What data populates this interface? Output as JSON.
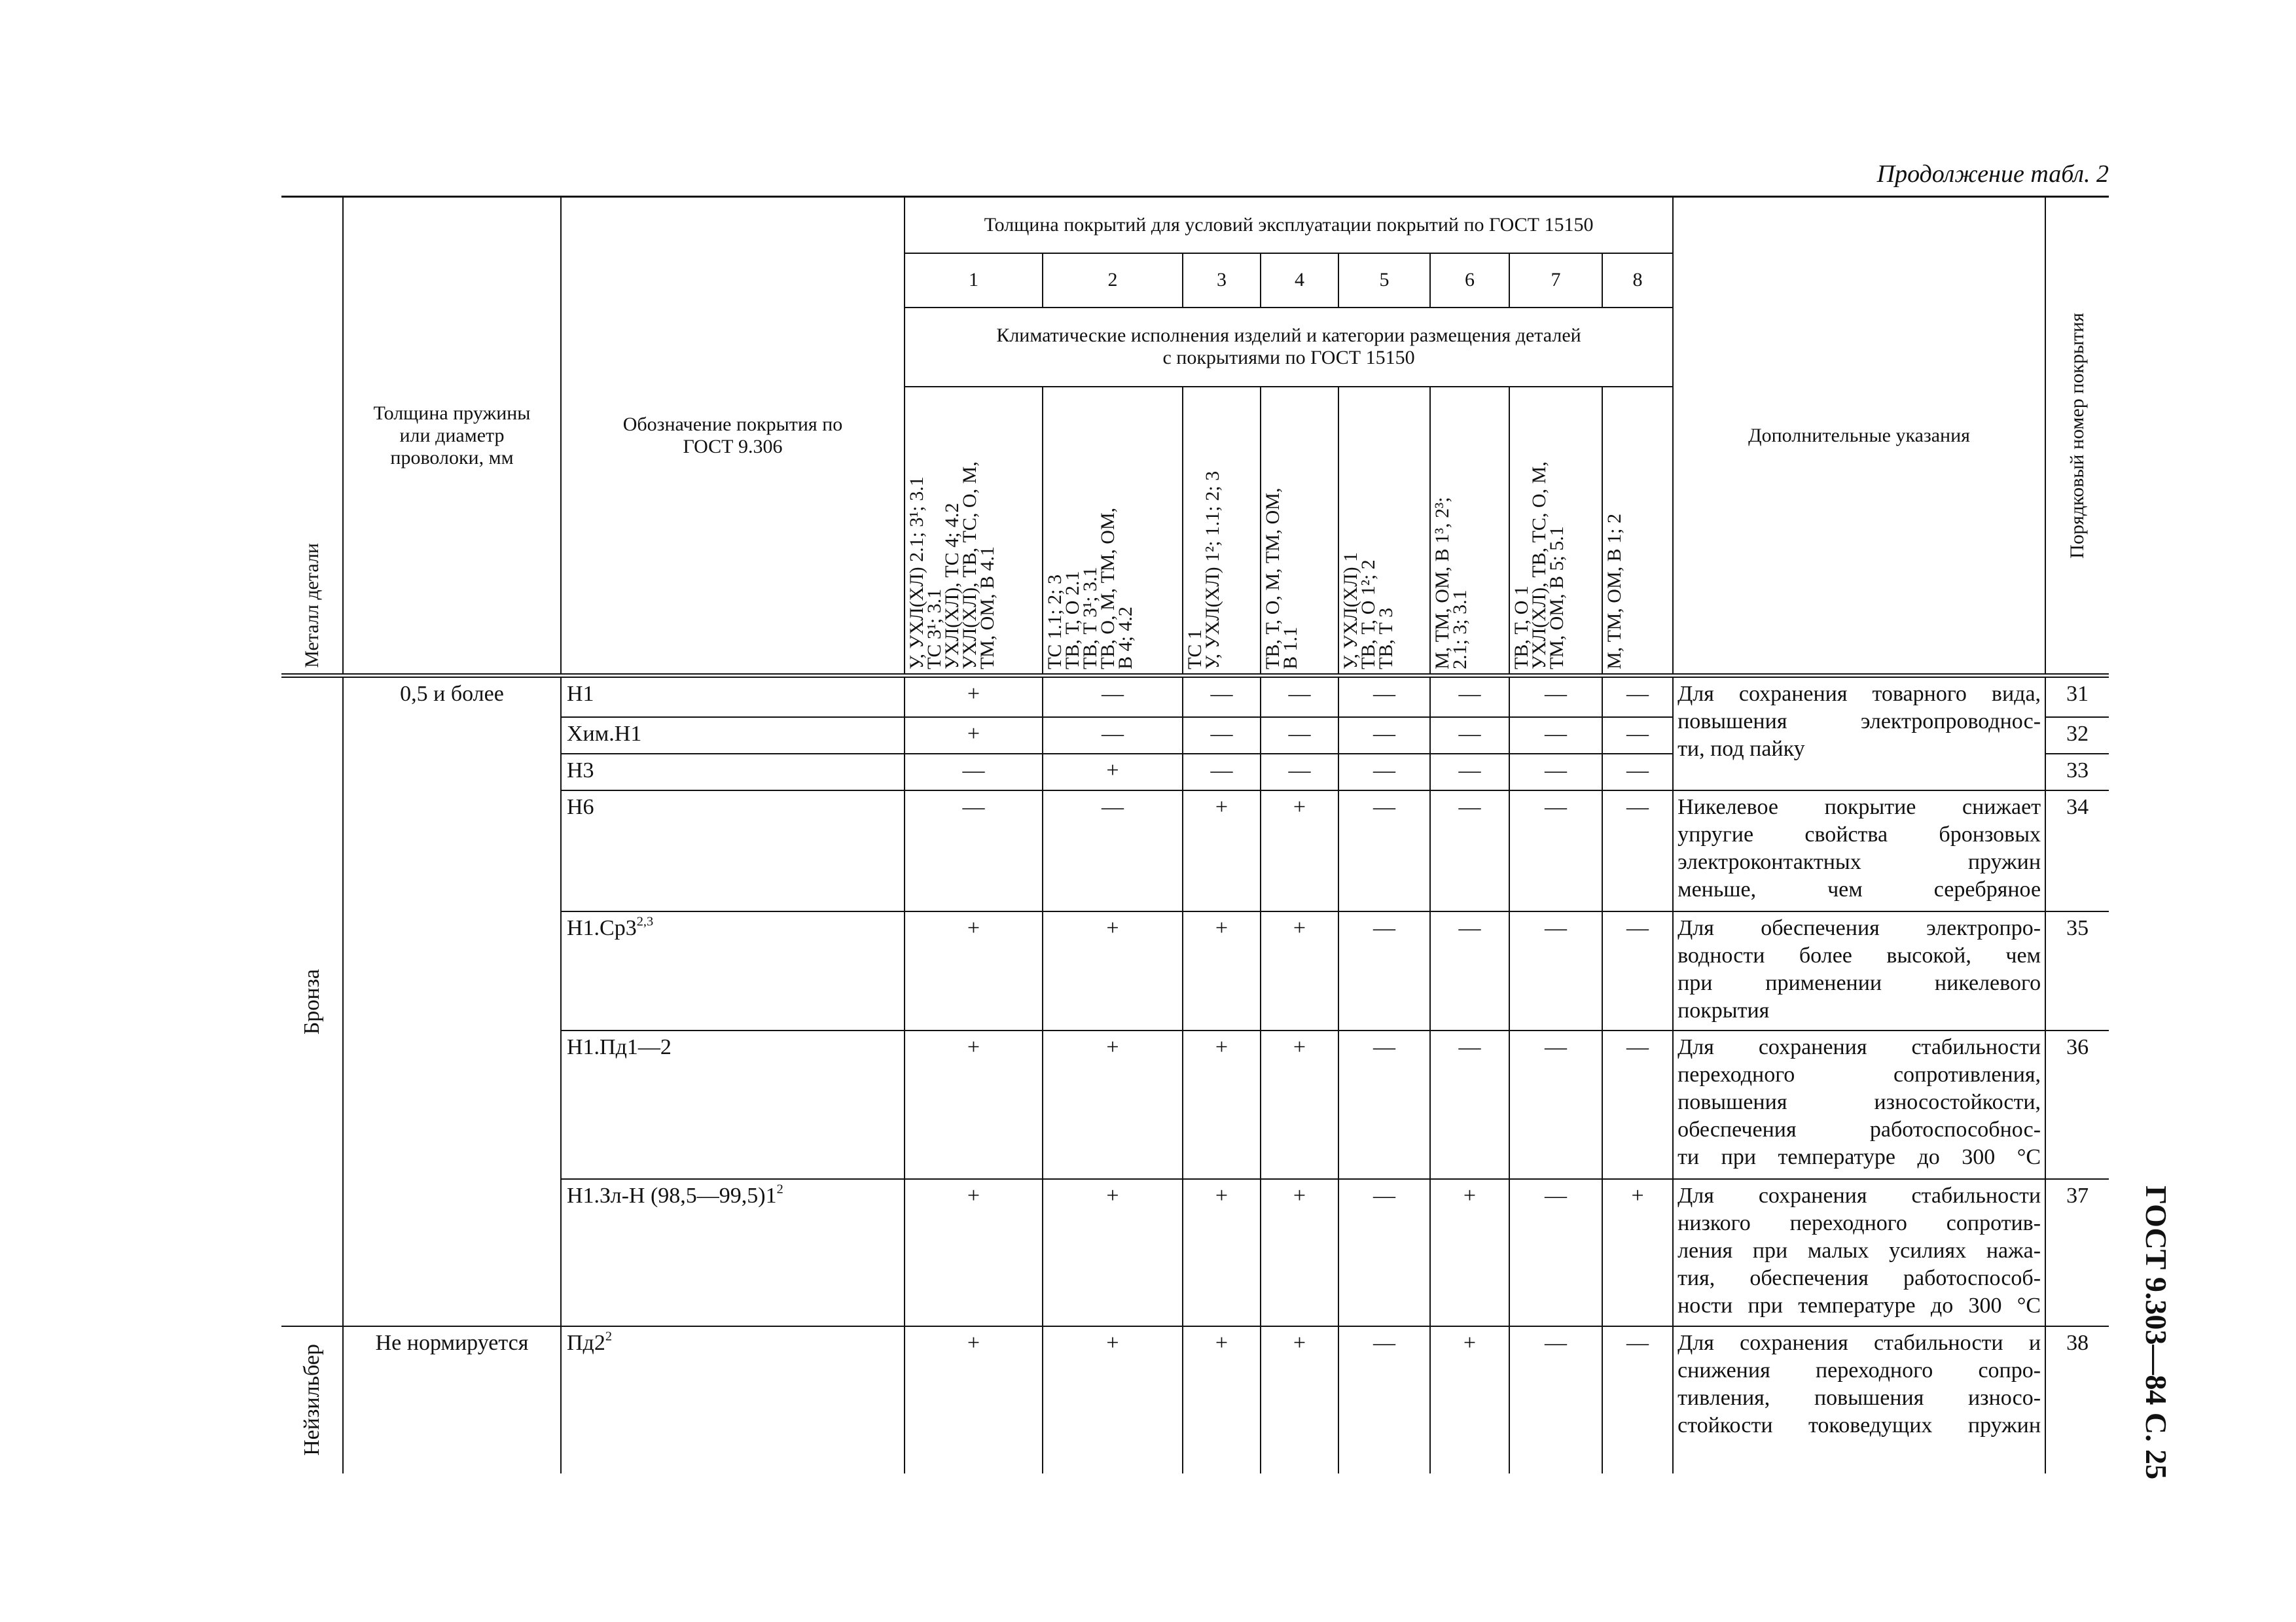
{
  "header": {
    "continuation": "Продолжение табл. 2",
    "side": "ГОСТ 9.303—84 С. 25"
  },
  "table": {
    "columns": {
      "metal": "Металл детали",
      "thickness": [
        "Толщина пружины",
        "или диаметр",
        "проволоки, мм"
      ],
      "designation": [
        "Обозначение покрытия по",
        "ГОСТ 9.306"
      ],
      "coverage_group": "Толщина покрытий для условий эксплуатации покрытий по ГОСТ  15150",
      "conditions": [
        "1",
        "2",
        "3",
        "4",
        "5",
        "6",
        "7",
        "8"
      ],
      "climate_group": [
        "Климатические исполнения изделий и категории размещения деталей",
        "с покрытиями по ГОСТ  15150"
      ],
      "climate": [
        [
          "У, УХЛ(ХЛ) 2.1; 3¹; 3.1",
          "ТС 3¹; 3.1",
          "УХЛ(ХЛ), ТС 4; 4.2",
          "УХЛ(ХЛ), ТВ, ТС, О, М,",
          "ТМ, ОМ, В 4.1"
        ],
        [
          "ТС 1.1; 2; 3",
          "ТВ, Т, О 2.1",
          "ТВ, Т 3¹; 3.1",
          "ТВ, О, М, ТМ, ОМ,",
          "В 4; 4.2"
        ],
        [
          "ТС 1",
          "У, УХЛ(ХЛ) 1²; 1.1; 2; 3"
        ],
        [
          "ТВ, Т, О, М, ТМ, ОМ,",
          "В 1.1"
        ],
        [
          "У, УХЛ(ХЛ) 1",
          "ТВ, Т, О 1²; 2",
          "ТВ, Т 3"
        ],
        [
          "М, ТМ, ОМ, В 1³, 2³;",
          "2.1; 3; 3.1"
        ],
        [
          "ТВ, Т, О 1",
          "УХЛ(ХЛ), ТВ, ТС, О, М,",
          "ТМ, ОМ, В 5; 5.1"
        ],
        [
          "М, ТМ, ОМ, В 1; 2"
        ]
      ],
      "notes": "Дополнительные указания",
      "number": "Порядковый номер покрытия"
    },
    "rows": [
      {
        "metal": "Бронза",
        "thickness": "0,5 и более",
        "designation": "Н1",
        "marks": [
          "+",
          "—",
          "—",
          "—",
          "—",
          "—",
          "—",
          "—"
        ],
        "note": [
          "Для сохранения товарного вида,",
          "повышения электропроводнос-",
          "ти, под пайку"
        ],
        "number": "31"
      },
      {
        "designation": "Хим.Н1",
        "marks": [
          "+",
          "—",
          "—",
          "—",
          "—",
          "—",
          "—",
          "—"
        ],
        "number": "32"
      },
      {
        "designation": "Н3",
        "marks": [
          "—",
          "+",
          "—",
          "—",
          "—",
          "—",
          "—",
          "—"
        ],
        "number": "33"
      },
      {
        "designation": "Н6",
        "marks": [
          "—",
          "—",
          "+",
          "+",
          "—",
          "—",
          "—",
          "—"
        ],
        "note": [
          "Никелевое покрытие снижает",
          "упругие свойства бронзовых",
          "электроконтактных пружин",
          "меньше, чем серебряное"
        ],
        "number": "34"
      },
      {
        "designation": "Н1.Ср3",
        "sup": "2,3",
        "marks": [
          "+",
          "+",
          "+",
          "+",
          "—",
          "—",
          "—",
          "—"
        ],
        "note": [
          "Для обеспечения электропро-",
          "водности более высокой, чем",
          "при применении никелевого",
          "покрытия"
        ],
        "number": "35"
      },
      {
        "designation": "Н1.Пд1—2",
        "marks": [
          "+",
          "+",
          "+",
          "+",
          "—",
          "—",
          "—",
          "—"
        ],
        "note": [
          "Для сохранения стабильности",
          "переходного сопротивления,",
          "повышения износостойкости,",
          "обеспечения работоспособнос-",
          "ти при температуре до 300 °С"
        ],
        "number": "36"
      },
      {
        "designation": "Н1.Зл-Н (98,5—99,5)1",
        "sup": "2",
        "marks": [
          "+",
          "+",
          "+",
          "+",
          "—",
          "+",
          "—",
          "+"
        ],
        "note": [
          "Для сохранения стабильности",
          "низкого переходного сопротив-",
          "ления при малых усилиях нажа-",
          "тия, обеспечения работоспособ-",
          "ности при температуре до 300 °С"
        ],
        "number": "37"
      },
      {
        "metal": "Нейзильбер",
        "thickness": "Не нормируется",
        "designation": "Пд2",
        "sup": "2",
        "marks": [
          "+",
          "+",
          "+",
          "+",
          "—",
          "+",
          "—",
          "—"
        ],
        "note": [
          "Для сохранения стабильности и",
          "снижения переходного сопро-",
          "тивления, повышения износо-",
          "стойкости токоведущих пружин"
        ],
        "number": "38"
      }
    ]
  }
}
